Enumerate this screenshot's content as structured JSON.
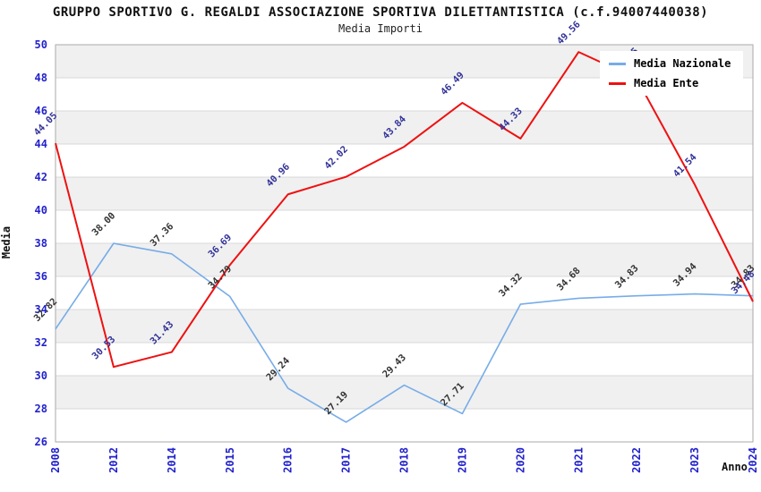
{
  "header": {
    "title": "GRUPPO SPORTIVO G. REGALDI ASSOCIAZIONE SPORTIVA DILETTANTISTICA (c.f.94007440038)",
    "subtitle": "Media Importi"
  },
  "axes": {
    "y_label": "Media",
    "x_label": "Anno",
    "y_ticks": [
      26,
      28,
      30,
      32,
      34,
      36,
      38,
      40,
      42,
      44,
      46,
      48,
      50
    ],
    "tick_color": "#2222CC"
  },
  "legend": {
    "items": [
      {
        "label": "Media Nazionale",
        "color": "#77ACE8"
      },
      {
        "label": "Media Ente",
        "color": "#EE1111"
      }
    ]
  },
  "chart_data": {
    "type": "line",
    "title": "GRUPPO SPORTIVO G. REGALDI ASSOCIAZIONE SPORTIVA DILETTANTISTICA (c.f.94007440038)",
    "subtitle": "Media Importi",
    "xlabel": "Anno",
    "ylabel": "Media",
    "categories": [
      "2008",
      "2012",
      "2014",
      "2015",
      "2016",
      "2017",
      "2018",
      "2019",
      "2020",
      "2021",
      "2022",
      "2023",
      "2024"
    ],
    "series": [
      {
        "name": "Media Nazionale",
        "color": "#77ACE8",
        "label_color": "#333333",
        "values": [
          32.82,
          38.0,
          37.36,
          34.79,
          29.24,
          27.19,
          29.43,
          27.71,
          34.32,
          34.68,
          34.83,
          34.94,
          34.83
        ]
      },
      {
        "name": "Media Ente",
        "color": "#EE1111",
        "label_color": "#333399",
        "values": [
          44.05,
          30.53,
          31.43,
          36.69,
          40.96,
          42.02,
          43.84,
          46.49,
          44.33,
          49.56,
          47.95,
          41.54,
          34.48
        ]
      }
    ],
    "ylim": [
      26,
      50
    ],
    "ytick_step": 2,
    "grid": "horizontal-bands",
    "band_colors": [
      "#ffffff",
      "#f0f0f0"
    ],
    "gridline_color": "#d9d9d9",
    "border_color": "#aaaaaa",
    "legend_position": "top-right",
    "point_labels": "values shown rotated 45deg at each vertex; Media Ente 2022 label hidden behind legend (value estimated from line)"
  }
}
